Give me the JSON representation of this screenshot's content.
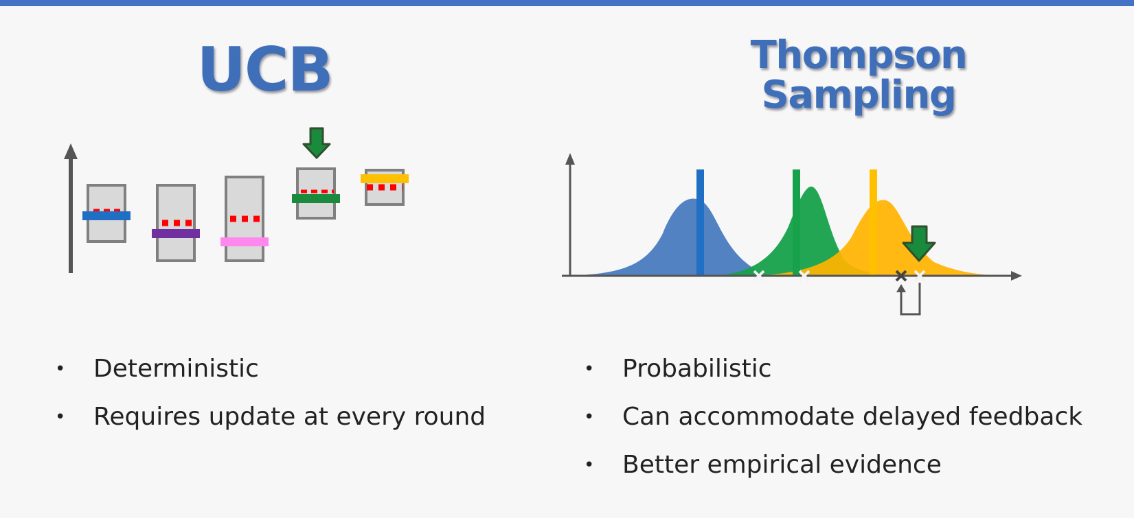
{
  "header": {
    "color": "#4472c4"
  },
  "left_panel": {
    "title": "UCB",
    "title_color": "#3e6fb8",
    "bullets": [
      "Deterministic",
      "Requires update at every round"
    ],
    "diagram": {
      "box_fill": "#d9d9d9",
      "box_stroke": "#808080",
      "ucb_marker_color": "#ff0000",
      "arm_colors": [
        "#1f6fc4",
        "#7030a0",
        "#ff88ee",
        "#1a8a3c",
        "#ffc000"
      ],
      "selected_indicator": "down-arrow-icon",
      "selected_arm_index": 3
    }
  },
  "right_panel": {
    "title_line1": "Thompson",
    "title_line2": "Sampling",
    "bullets": [
      "Probabilistic",
      "Can accommodate delayed feedback",
      "Better empirical evidence"
    ],
    "diagram": {
      "distribution_colors": [
        "#4a7bc0",
        "#17a14a",
        "#ffb400"
      ],
      "mean_line_colors": [
        "#1f6fc4",
        "#17a14a",
        "#ffc000"
      ],
      "sample_marker_icon": "x-mark-icon",
      "selected_indicator": "down-arrow-icon",
      "selected_distribution_index": 2
    }
  }
}
